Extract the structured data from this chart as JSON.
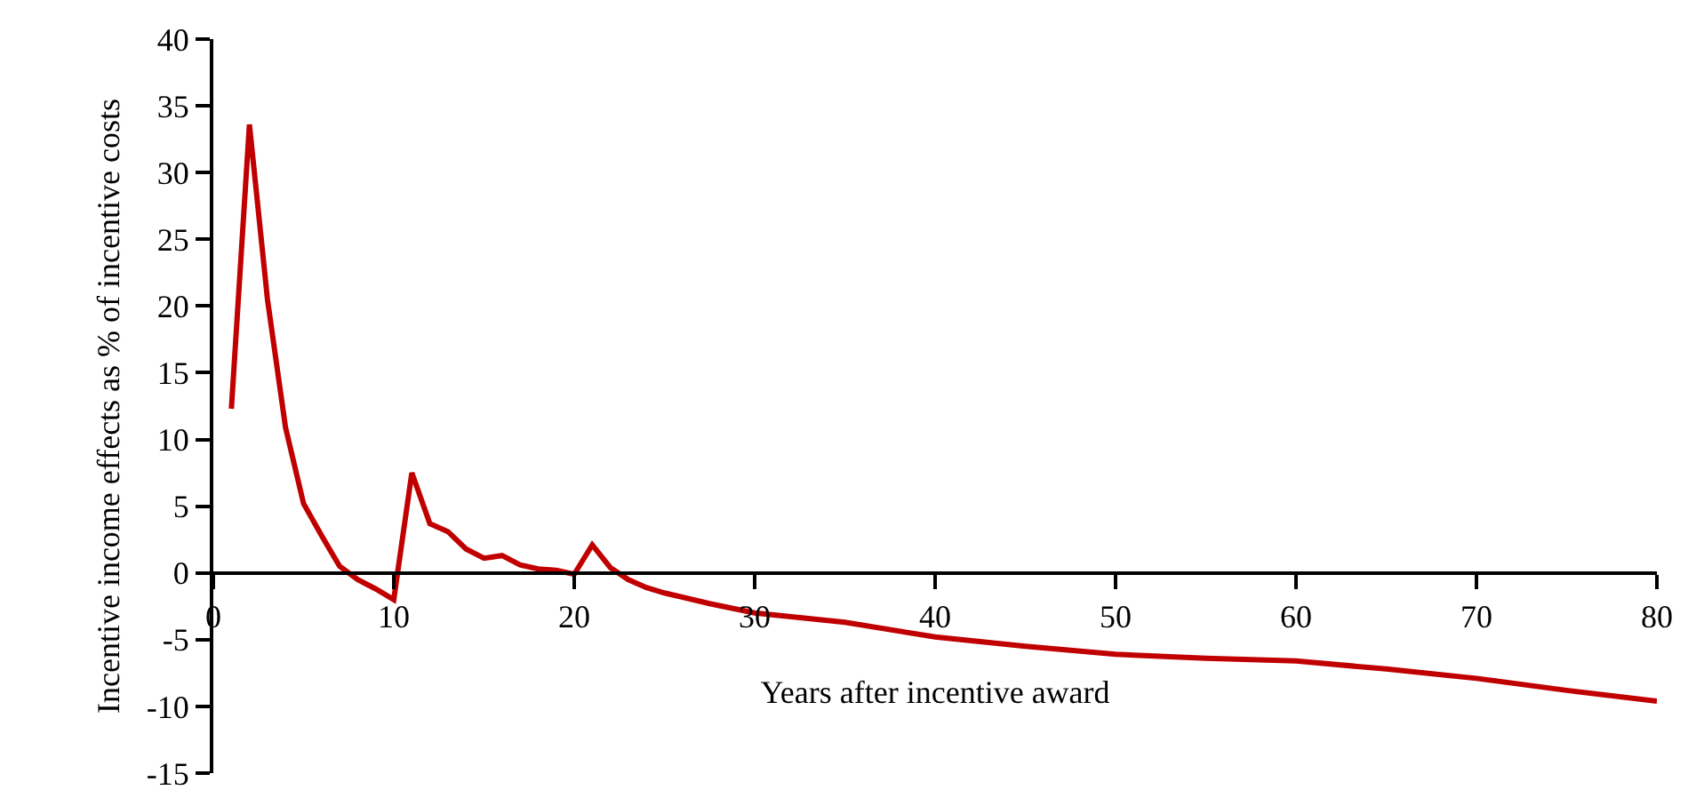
{
  "chart_data": {
    "type": "line",
    "xlabel": "Years after incentive award",
    "ylabel": "Incentive income effects as % of incentive costs",
    "x": [
      1,
      2,
      3,
      4,
      5,
      6,
      7,
      8,
      9,
      10,
      11,
      12,
      13,
      14,
      15,
      16,
      17,
      18,
      19,
      20,
      21,
      22,
      23,
      24,
      25,
      27.5,
      30,
      35,
      40,
      45,
      50,
      55,
      60,
      65,
      70,
      75,
      80
    ],
    "series": [
      {
        "color": "#c00000",
        "values": [
          12.3,
          33.6,
          20.5,
          10.9,
          5.2,
          2.8,
          0.5,
          -0.5,
          -1.2,
          -2.0,
          7.5,
          3.7,
          3.1,
          1.8,
          1.1,
          1.3,
          0.6,
          0.3,
          0.2,
          -0.1,
          2.1,
          0.4,
          -0.5,
          -1.1,
          -1.5,
          -2.3,
          -3.0,
          -3.7,
          -4.8,
          -5.5,
          -6.1,
          -6.4,
          -6.6,
          -7.2,
          -7.9,
          -8.8,
          -9.6
        ]
      }
    ],
    "xlim": [
      0,
      80
    ],
    "xticks": [
      0,
      10,
      20,
      30,
      40,
      50,
      60,
      70,
      80
    ],
    "ylim": [
      -15,
      40
    ],
    "yticks": [
      -15,
      -10,
      -5,
      0,
      5,
      10,
      15,
      20,
      25,
      30,
      35,
      40
    ],
    "grid": false,
    "marker": "none",
    "line_style": "solid"
  }
}
